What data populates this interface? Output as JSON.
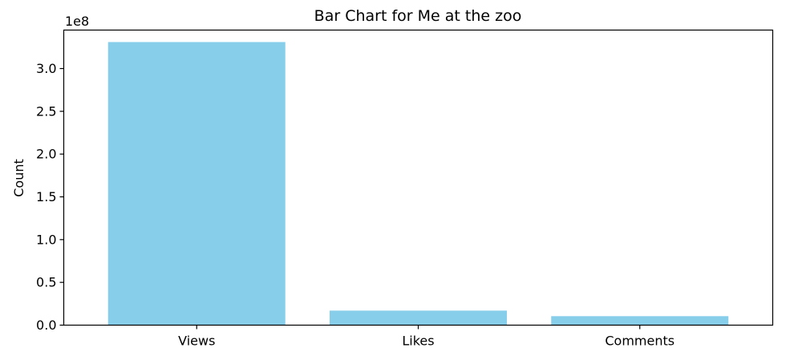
{
  "chart_data": {
    "type": "bar",
    "title": "Bar Chart for Me at the zoo",
    "xlabel": "",
    "ylabel": "Count",
    "categories": [
      "Views",
      "Likes",
      "Comments"
    ],
    "values": [
      331000000,
      17000000,
      10500000
    ],
    "ylim": [
      0,
      345000000
    ],
    "yticks": [
      0,
      50000000,
      100000000,
      150000000,
      200000000,
      250000000,
      300000000
    ],
    "ytick_labels": [
      "0.0",
      "0.5",
      "1.0",
      "1.5",
      "2.0",
      "2.5",
      "3.0"
    ],
    "y_offset_label": "1e8",
    "bar_color": "#87ceeb",
    "grid": false,
    "legend": "none"
  }
}
